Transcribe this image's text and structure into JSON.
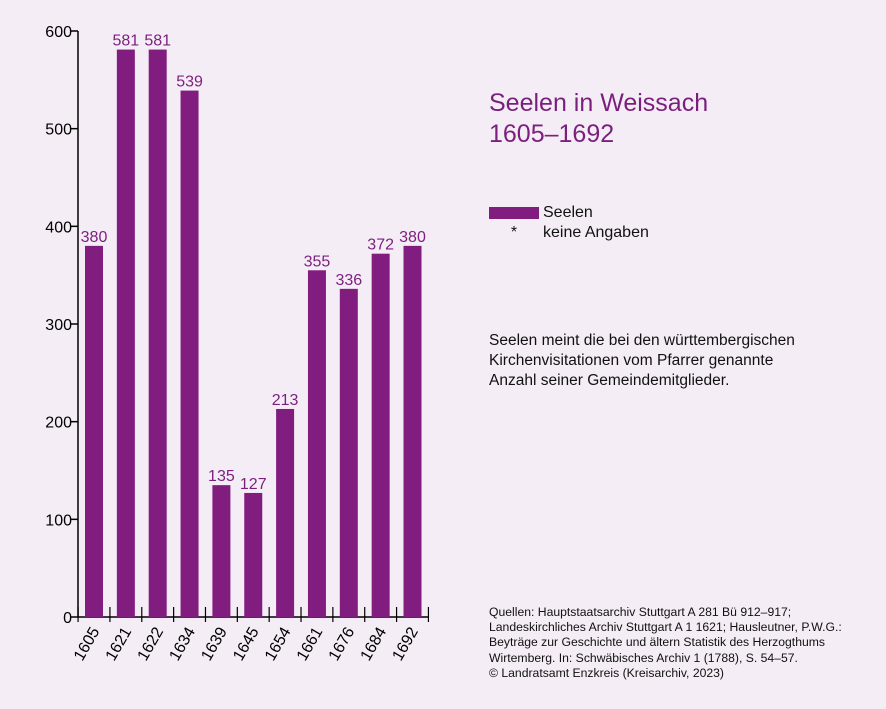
{
  "title": {
    "line1": "Seelen in Weissach",
    "line2": "1605–1692"
  },
  "legend": {
    "series_label": "Seelen",
    "marker_symbol": "*",
    "marker_label": "keine Angaben"
  },
  "note": {
    "lines": [
      "Seelen meint die bei den württembergischen",
      "Kirchenvisitationen vom Pfarrer genannte",
      "Anzahl seiner Gemeindemitglieder."
    ]
  },
  "sources": {
    "lines": [
      "Quellen: Hauptstaatsarchiv Stuttgart A 281 Bü 912–917;",
      "Landeskirchliches Archiv Stuttgart A 1 1621; Hausleutner, P.W.G.:",
      "Beyträge zur Geschichte und ältern Statistik des Herzogthums",
      "Wirtemberg. In: Schwäbisches Archiv 1 (1788), S. 54–57.",
      "© Landratsamt Enzkreis (Kreisarchiv, 2023)"
    ]
  },
  "colors": {
    "bar": "#821d80",
    "title": "#7b1f7f",
    "label": "#7b1f7f",
    "background": "#f5edf5"
  },
  "chart_data": {
    "type": "bar",
    "categories": [
      "1605",
      "1621",
      "1622",
      "1634",
      "1639",
      "1645",
      "1654",
      "1661",
      "1676",
      "1684",
      "1692"
    ],
    "series": [
      {
        "name": "Seelen",
        "values": [
          380,
          581,
          581,
          539,
          135,
          127,
          213,
          355,
          336,
          372,
          380
        ]
      }
    ],
    "ylim": [
      0,
      600
    ],
    "yticks": [
      0,
      100,
      200,
      300,
      400,
      500,
      600
    ],
    "xlabel": "",
    "ylabel": "",
    "grid": false,
    "legend_position": "right"
  }
}
